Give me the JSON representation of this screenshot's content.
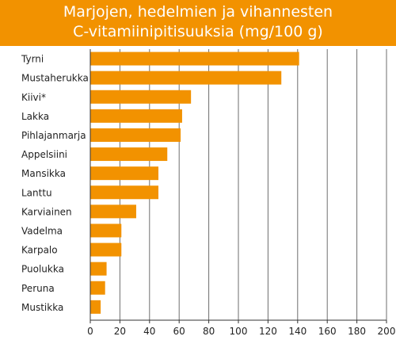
{
  "title_lines": [
    "Marjojen, hedelmien ja vihannesten",
    "C-vitamiinipitisuuksia (mg/100 g)"
  ],
  "colors": {
    "title_band": "#f29200",
    "bar": "#f29200",
    "grid": "#6e6e6e",
    "text": "#222222"
  },
  "chart_data": {
    "type": "bar",
    "orientation": "horizontal",
    "title": "Marjojen, hedelmien ja vihannesten C-vitamiinipitisuuksia (mg/100 g)",
    "categories": [
      "Tyrni",
      "Mustaherukka",
      "Kiivi*",
      "Lakka",
      "Pihlajanmarja",
      "Appelsiini",
      "Mansikka",
      "Lanttu",
      "Karviainen",
      "Vadelma",
      "Karpalo",
      "Puolukka",
      "Peruna",
      "Mustikka"
    ],
    "values": [
      141,
      129,
      68,
      62,
      61,
      52,
      46,
      46,
      31,
      21,
      21,
      11,
      10,
      7
    ],
    "xlim": [
      0,
      200
    ],
    "xticks": [
      0,
      20,
      40,
      60,
      80,
      100,
      120,
      140,
      160,
      180,
      200
    ],
    "grid": true,
    "legend": "none"
  }
}
